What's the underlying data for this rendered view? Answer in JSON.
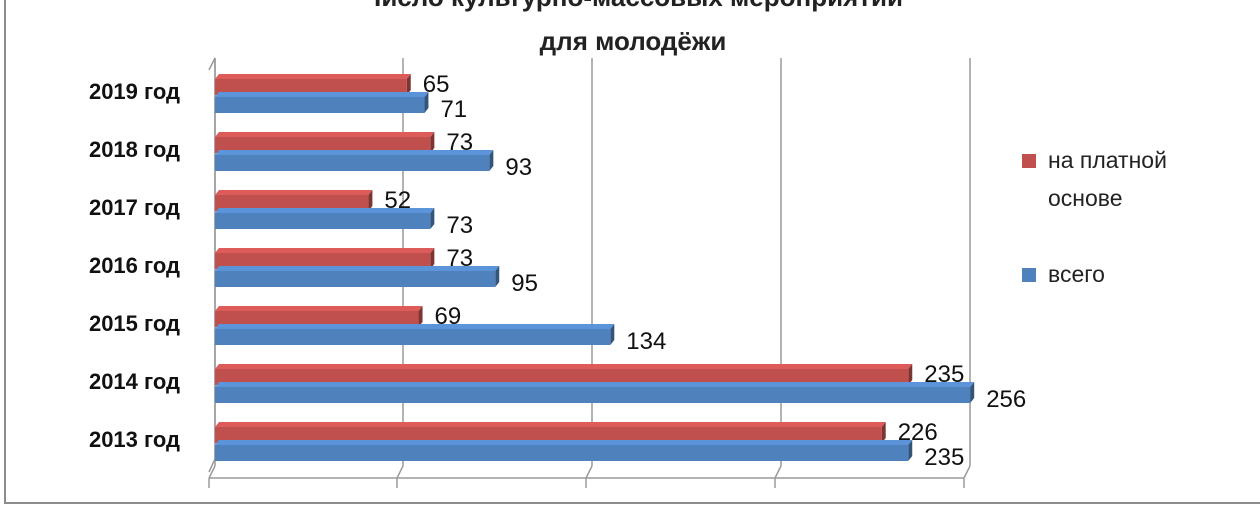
{
  "chart_data": {
    "type": "bar",
    "orientation": "horizontal",
    "title_line1": "Число культурно-массовых мероприятий",
    "title_line2": "для молодёжи",
    "categories": [
      "2013 год",
      "2014 год",
      "2015 год",
      "2016 год",
      "2017 год",
      "2018 год",
      "2019 год"
    ],
    "series": [
      {
        "name": "на платной основе",
        "color": "#c0504d",
        "values": [
          226,
          235,
          69,
          73,
          52,
          73,
          65
        ]
      },
      {
        "name": "всего",
        "color": "#4f81bd",
        "values": [
          235,
          256,
          134,
          95,
          73,
          93,
          71
        ]
      }
    ],
    "legend_placement": "right",
    "grid": true
  }
}
